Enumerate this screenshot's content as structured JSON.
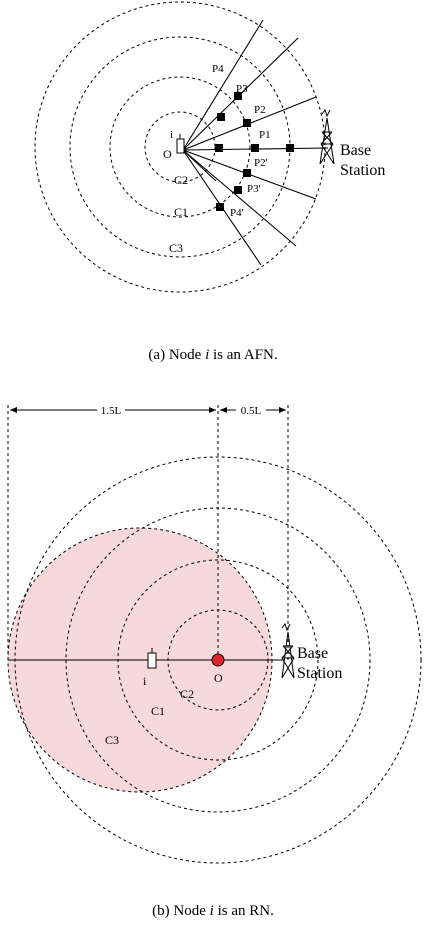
{
  "figure_a": {
    "node_label": "i",
    "origin_label": "O",
    "circles": [
      "C2",
      "C1",
      "C3"
    ],
    "points": [
      "P4",
      "P3",
      "P2",
      "P1",
      "P2'",
      "P3'",
      "P4'"
    ],
    "base_station": [
      "Base",
      "Station"
    ],
    "caption": {
      "prefix": "(a) Node ",
      "var": "i",
      "suffix": " is an AFN."
    }
  },
  "figure_b": {
    "dim_left": "1.5L",
    "dim_right": "0.5L",
    "node_label": "i",
    "origin_label": "O",
    "circles": [
      "C2",
      "C1",
      "C3"
    ],
    "base_station": [
      "Base",
      "Station"
    ],
    "region_color": "#f7d9dc",
    "origin_color": "#e0242c",
    "caption": {
      "prefix": "(b) Node ",
      "var": "i",
      "suffix": " is an RN."
    }
  }
}
